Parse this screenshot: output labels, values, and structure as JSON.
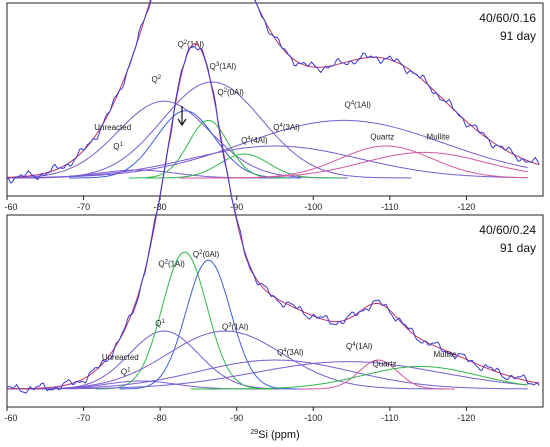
{
  "chart_data": {
    "type": "line",
    "xlabel": "29Si (ppm)",
    "xlabel_sup": "29",
    "xlabel_rest": "Si (ppm)",
    "xlim": [
      -60,
      -130
    ],
    "xticks": [
      -60,
      -70,
      -80,
      -90,
      -100,
      -110,
      -120
    ],
    "colors": {
      "experimental": "#3a3ad0",
      "fit_sum": "#c0306a",
      "component_purple": "#7a5bd0",
      "component_green": "#2fb84a",
      "component_blue": "#3d5fd8",
      "component_pink": "#d05aa0"
    },
    "panels": [
      {
        "id": "top",
        "corner_line1": "40/60/0.16",
        "corner_line2": "91 day",
        "components": [
          {
            "center": -77.0,
            "height": 0.05,
            "width": 5.0,
            "color": "purple"
          },
          {
            "center": -80.5,
            "height": 0.48,
            "width": 6.0,
            "color": "purple"
          },
          {
            "center": -83.3,
            "height": 0.42,
            "width": 3.8,
            "color": "blue"
          },
          {
            "center": -86.3,
            "height": 0.36,
            "width": 2.6,
            "color": "green"
          },
          {
            "center": -86.8,
            "height": 0.6,
            "width": 6.5,
            "color": "purple"
          },
          {
            "center": -91.0,
            "height": 0.15,
            "width": 3.2,
            "color": "green"
          },
          {
            "center": -95.0,
            "height": 0.2,
            "width": 11.0,
            "color": "purple"
          },
          {
            "center": -104.0,
            "height": 0.36,
            "width": 13.0,
            "color": "purple"
          },
          {
            "center": -109.5,
            "height": 0.2,
            "width": 6.0,
            "color": "pink"
          },
          {
            "center": -114.5,
            "height": 0.16,
            "width": 8.0,
            "color": "pink"
          }
        ],
        "annotations": [
          {
            "text": "Unreacted",
            "ppm": -73.8,
            "level": 0.3
          },
          {
            "text": "Q",
            "sup": "1",
            "ppm": -74.5,
            "level": 0.18
          },
          {
            "text": "Q",
            "sup": "2",
            "ppm": -79.5,
            "level": 0.6
          },
          {
            "text": "Q",
            "sup": "2",
            "rest": "(1Al)",
            "ppm": -84.0,
            "level": 0.82
          },
          {
            "text": "Q",
            "sup": "3",
            "rest": "(1Al)",
            "ppm": -88.2,
            "level": 0.68
          },
          {
            "text": "Q",
            "sup": "2",
            "rest": "(0Al)",
            "ppm": -89.2,
            "level": 0.52
          },
          {
            "text": "Q",
            "sup": "4",
            "rest": "(4Al)",
            "ppm": -92.3,
            "level": 0.22
          },
          {
            "text": "Q",
            "sup": "4",
            "rest": "(3Al)",
            "ppm": -96.5,
            "level": 0.3
          },
          {
            "text": "Q",
            "sup": "4",
            "rest": "(1Al)",
            "ppm": -105.8,
            "level": 0.44
          },
          {
            "text": "Quartz",
            "ppm": -109.0,
            "level": 0.24
          },
          {
            "text": "Mullite",
            "ppm": -116.3,
            "level": 0.24
          }
        ]
      },
      {
        "id": "bottom",
        "corner_line1": "40/60/0.24",
        "corner_line2": "91 day",
        "components": [
          {
            "center": -77.5,
            "height": 0.05,
            "width": 4.5,
            "color": "purple"
          },
          {
            "center": -80.5,
            "height": 0.36,
            "width": 4.5,
            "color": "purple"
          },
          {
            "center": -83.2,
            "height": 0.85,
            "width": 2.9,
            "color": "green"
          },
          {
            "center": -86.3,
            "height": 0.8,
            "width": 2.9,
            "color": "blue"
          },
          {
            "center": -88.5,
            "height": 0.36,
            "width": 7.5,
            "color": "purple"
          },
          {
            "center": -95.0,
            "height": 0.18,
            "width": 10.0,
            "color": "purple"
          },
          {
            "center": -104.5,
            "height": 0.17,
            "width": 12.0,
            "color": "purple"
          },
          {
            "center": -108.5,
            "height": 0.18,
            "width": 2.5,
            "color": "pink"
          },
          {
            "center": -114.0,
            "height": 0.14,
            "width": 7.5,
            "color": "green"
          }
        ],
        "annotations": [
          {
            "text": "Unreacted",
            "ppm": -74.8,
            "level": 0.18
          },
          {
            "text": "Q",
            "sup": "1",
            "ppm": -75.5,
            "level": 0.09
          },
          {
            "text": "Q",
            "sup": "1",
            "ppm": -80.0,
            "level": 0.39
          },
          {
            "text": "Q",
            "sup": "2",
            "rest": "(1Al)",
            "ppm": -81.5,
            "level": 0.76
          },
          {
            "text": "Q",
            "sup": "2",
            "rest": "(0Al)",
            "ppm": -86.0,
            "level": 0.82
          },
          {
            "text": "Q",
            "sup": "3",
            "rest": "(1Al)",
            "ppm": -89.8,
            "level": 0.37
          },
          {
            "text": "Q",
            "sup": "4",
            "rest": "(3Al)",
            "ppm": -97.0,
            "level": 0.21
          },
          {
            "text": "Q",
            "sup": "4",
            "rest": "(1Al)",
            "ppm": -106.0,
            "level": 0.25
          },
          {
            "text": "Quartz",
            "ppm": -109.3,
            "level": 0.14
          },
          {
            "text": "Mullite",
            "ppm": -117.2,
            "level": 0.2
          }
        ]
      }
    ]
  }
}
